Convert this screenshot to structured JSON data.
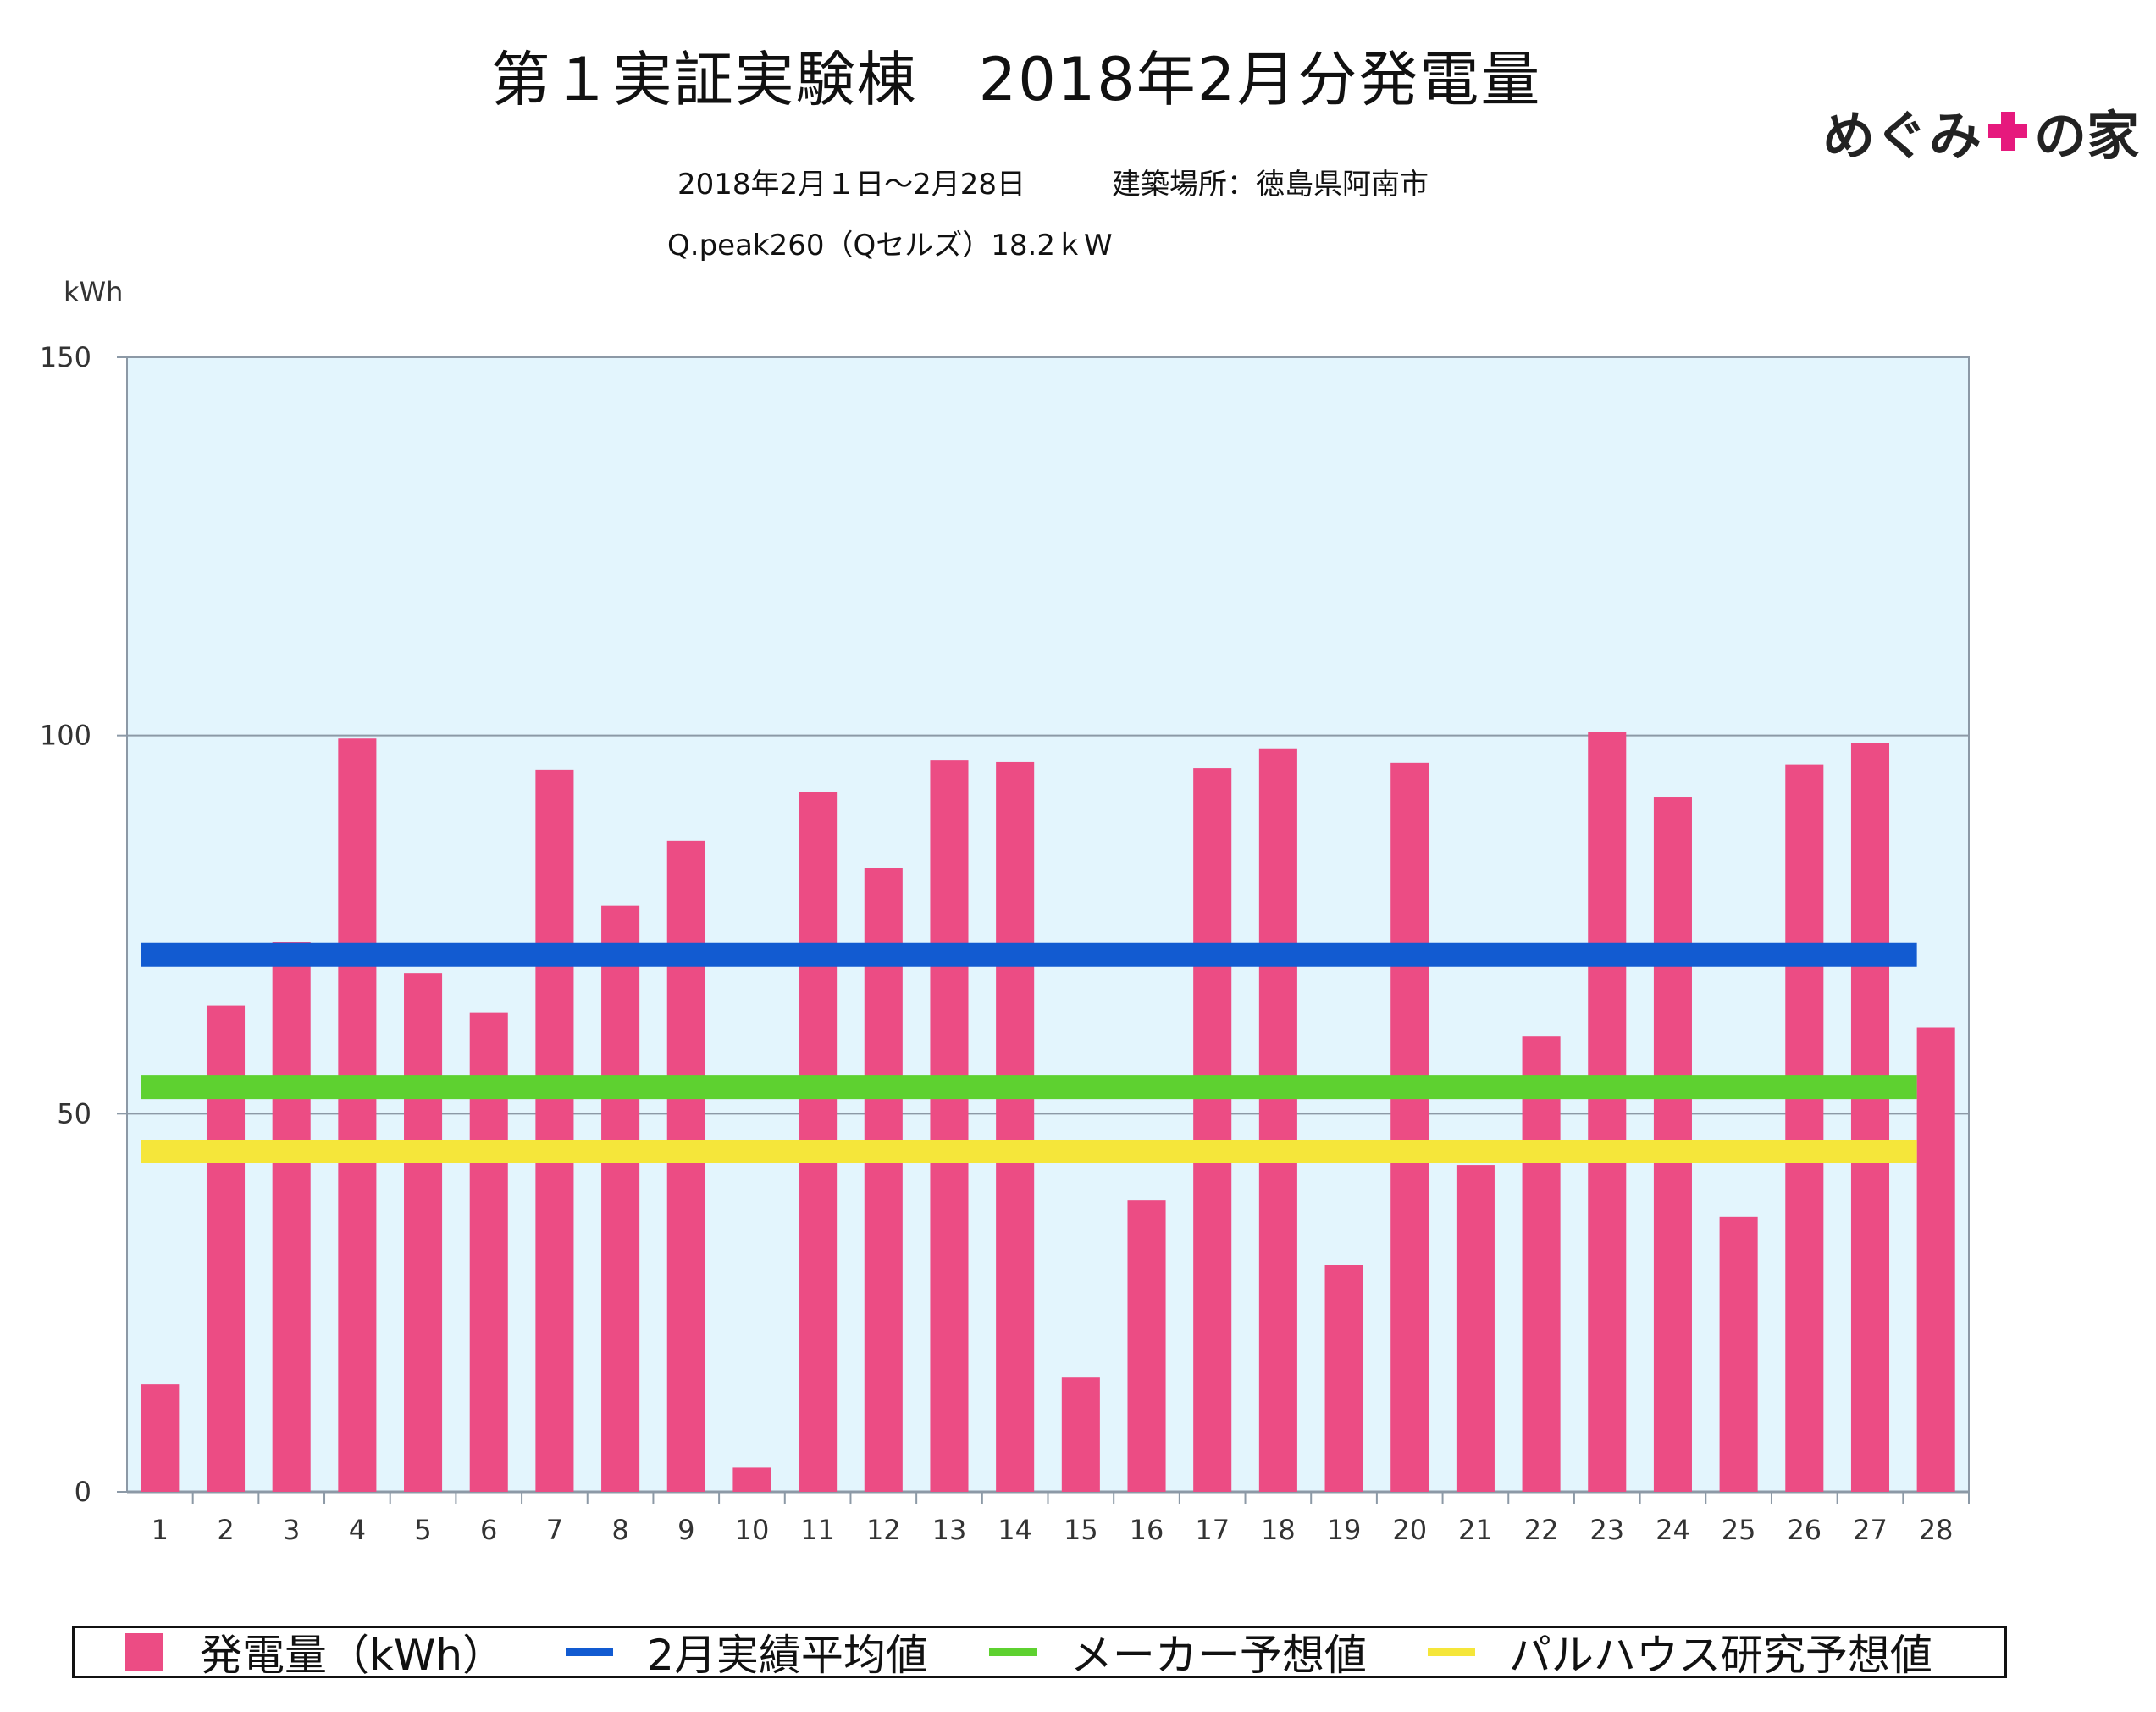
{
  "header": {
    "title": "第１実証実験棟　2018年2月分発電量",
    "subtitle_period": "2018年2月１日～2月28日　　　建築場所：徳島県阿南市",
    "subtitle_panel": "Q.peak260（Qセルズ）18.2ｋW"
  },
  "logo": {
    "text_left": "めぐみ",
    "text_right": "の家",
    "plus_color": "#e6197d"
  },
  "chart_data": {
    "type": "bar",
    "ylabel": "kWh",
    "ylim": [
      0,
      150
    ],
    "yticks": [
      0,
      50,
      100,
      150
    ],
    "grid": true,
    "background": "#e3f5fd",
    "categories": [
      "1",
      "2",
      "3",
      "4",
      "5",
      "6",
      "7",
      "8",
      "9",
      "10",
      "11",
      "12",
      "13",
      "14",
      "15",
      "16",
      "17",
      "18",
      "19",
      "20",
      "21",
      "22",
      "23",
      "24",
      "25",
      "26",
      "27",
      "28"
    ],
    "series": [
      {
        "name": "発電量（kWh）",
        "color": "#ec4c84",
        "values": [
          14.2,
          64.3,
          72.7,
          99.6,
          68.6,
          63.4,
          95.5,
          77.5,
          86.1,
          3.2,
          92.5,
          82.5,
          96.7,
          96.5,
          15.2,
          38.6,
          95.7,
          98.2,
          30.0,
          96.4,
          43.2,
          60.2,
          100.5,
          91.9,
          36.4,
          96.2,
          99.0,
          61.4
        ]
      }
    ],
    "reference_lines": [
      {
        "name": "2月実績平均値",
        "color": "#125bd1",
        "value": 71.0
      },
      {
        "name": "メーカー予想値",
        "color": "#5ed130",
        "value": 53.5
      },
      {
        "name": "パルハウス研究予想値",
        "color": "#f5e63a",
        "value": 45.0
      }
    ],
    "legend_position": "bottom"
  }
}
